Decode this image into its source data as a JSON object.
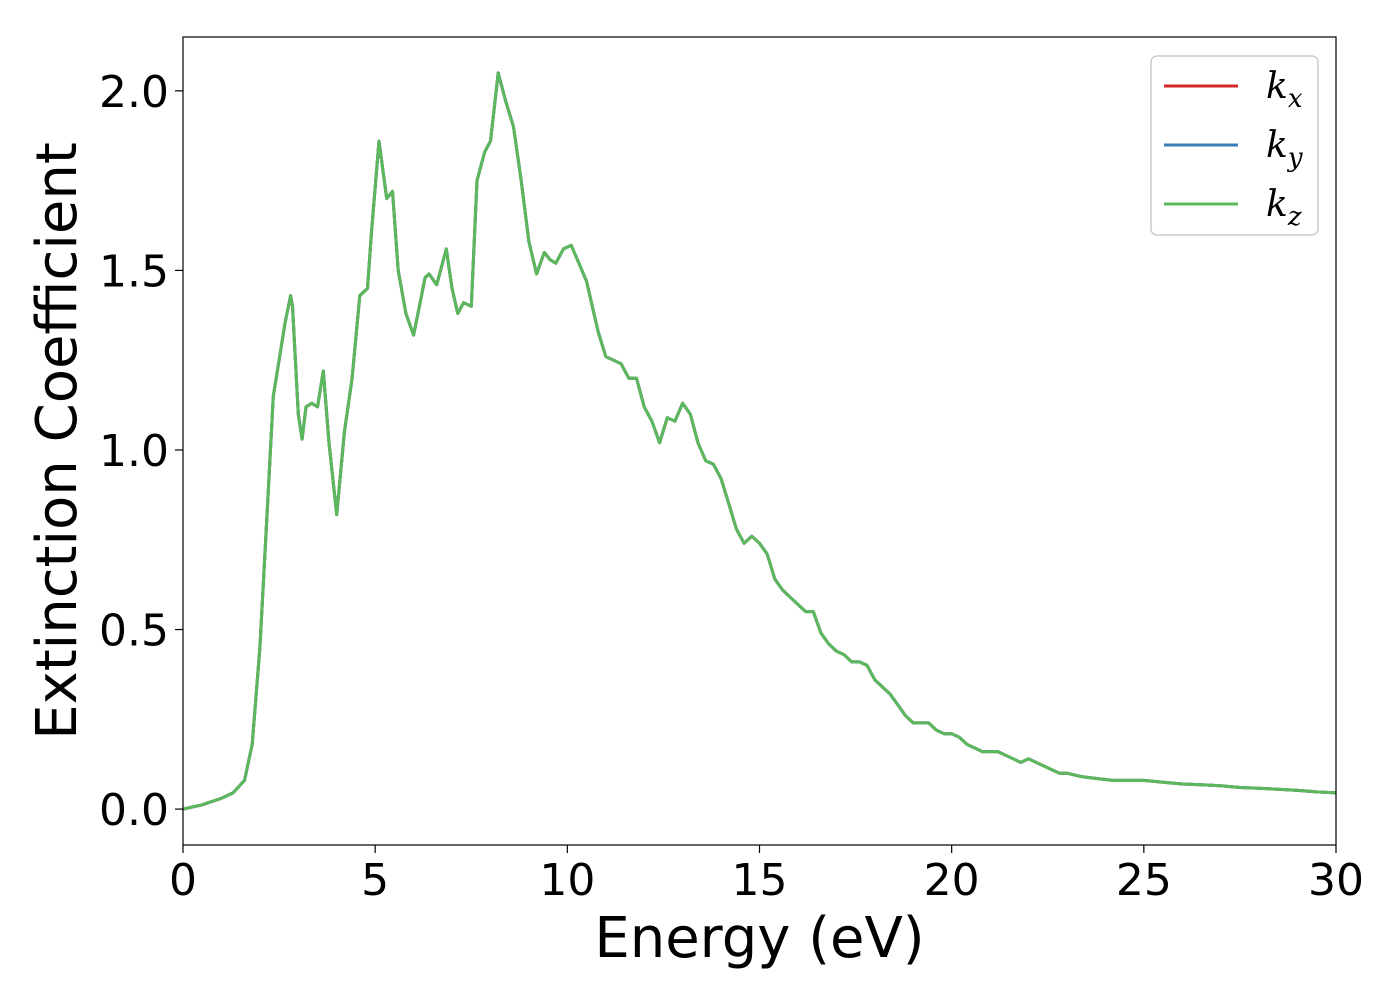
{
  "chart_data": {
    "type": "line",
    "title": "",
    "xlabel": "Energy (eV)",
    "ylabel": "Extinction Coefficient",
    "xlim": [
      0,
      30
    ],
    "ylim": [
      -0.1,
      2.15
    ],
    "xticks": [
      0,
      5,
      10,
      15,
      20,
      25,
      30
    ],
    "xtick_labels": [
      "0",
      "5",
      "10",
      "15",
      "20",
      "25",
      "30"
    ],
    "yticks": [
      0.0,
      0.5,
      1.0,
      1.5,
      2.0
    ],
    "ytick_labels": [
      "0.0",
      "0.5",
      "1.0",
      "1.5",
      "2.0"
    ],
    "grid": false,
    "legend_position": "top-right",
    "x": [
      0,
      0.5,
      1.0,
      1.3,
      1.6,
      1.8,
      2.0,
      2.2,
      2.35,
      2.5,
      2.65,
      2.8,
      2.85,
      3.0,
      3.1,
      3.2,
      3.35,
      3.5,
      3.65,
      3.8,
      4.0,
      4.2,
      4.4,
      4.6,
      4.8,
      4.9,
      5.1,
      5.3,
      5.45,
      5.6,
      5.8,
      6.0,
      6.15,
      6.3,
      6.4,
      6.6,
      6.85,
      7.0,
      7.15,
      7.3,
      7.5,
      7.65,
      7.85,
      8.0,
      8.2,
      8.4,
      8.6,
      8.8,
      9.0,
      9.2,
      9.4,
      9.55,
      9.7,
      9.9,
      10.1,
      10.3,
      10.5,
      10.8,
      11.0,
      11.2,
      11.4,
      11.6,
      11.8,
      12.0,
      12.2,
      12.4,
      12.6,
      12.8,
      13.0,
      13.2,
      13.4,
      13.6,
      13.8,
      14.0,
      14.2,
      14.4,
      14.6,
      14.8,
      15.0,
      15.2,
      15.4,
      15.6,
      15.8,
      16.0,
      16.2,
      16.4,
      16.6,
      16.8,
      17.0,
      17.2,
      17.4,
      17.6,
      17.8,
      18.0,
      18.2,
      18.4,
      18.6,
      18.8,
      19.0,
      19.2,
      19.4,
      19.6,
      19.8,
      20.0,
      20.2,
      20.4,
      20.6,
      20.8,
      21.0,
      21.2,
      21.4,
      21.6,
      21.8,
      22.0,
      22.2,
      22.4,
      22.6,
      22.8,
      23.0,
      23.4,
      23.8,
      24.2,
      24.6,
      25.0,
      25.5,
      26.0,
      26.5,
      27.0,
      27.5,
      28.0,
      28.5,
      29.0,
      29.5,
      30.0
    ],
    "series": [
      {
        "name": "k_x",
        "label_main": "k",
        "label_sub": "x",
        "color": "#d62728",
        "values": [
          0.0,
          0.012,
          0.03,
          0.045,
          0.08,
          0.18,
          0.45,
          0.85,
          1.15,
          1.25,
          1.35,
          1.43,
          1.4,
          1.1,
          1.03,
          1.12,
          1.13,
          1.12,
          1.22,
          1.02,
          0.82,
          1.05,
          1.2,
          1.43,
          1.45,
          1.6,
          1.86,
          1.7,
          1.72,
          1.5,
          1.38,
          1.32,
          1.4,
          1.48,
          1.49,
          1.46,
          1.56,
          1.45,
          1.38,
          1.41,
          1.4,
          1.75,
          1.83,
          1.86,
          2.05,
          1.97,
          1.9,
          1.75,
          1.58,
          1.49,
          1.55,
          1.53,
          1.52,
          1.56,
          1.57,
          1.52,
          1.47,
          1.33,
          1.26,
          1.25,
          1.24,
          1.2,
          1.2,
          1.12,
          1.08,
          1.02,
          1.09,
          1.08,
          1.13,
          1.1,
          1.02,
          0.97,
          0.96,
          0.92,
          0.85,
          0.78,
          0.74,
          0.76,
          0.74,
          0.71,
          0.64,
          0.61,
          0.59,
          0.57,
          0.55,
          0.55,
          0.49,
          0.46,
          0.44,
          0.43,
          0.41,
          0.41,
          0.4,
          0.36,
          0.34,
          0.32,
          0.29,
          0.26,
          0.24,
          0.24,
          0.24,
          0.22,
          0.21,
          0.21,
          0.2,
          0.18,
          0.17,
          0.16,
          0.16,
          0.16,
          0.15,
          0.14,
          0.13,
          0.14,
          0.13,
          0.12,
          0.11,
          0.1,
          0.1,
          0.09,
          0.085,
          0.08,
          0.08,
          0.08,
          0.075,
          0.07,
          0.068,
          0.065,
          0.06,
          0.058,
          0.055,
          0.052,
          0.048,
          0.045
        ]
      },
      {
        "name": "k_y",
        "label_main": "k",
        "label_sub": "y",
        "color": "#377eb8",
        "values": [
          0.0,
          0.012,
          0.03,
          0.045,
          0.08,
          0.18,
          0.45,
          0.85,
          1.15,
          1.25,
          1.35,
          1.43,
          1.4,
          1.1,
          1.03,
          1.12,
          1.13,
          1.12,
          1.22,
          1.02,
          0.82,
          1.05,
          1.2,
          1.43,
          1.45,
          1.6,
          1.86,
          1.7,
          1.72,
          1.5,
          1.38,
          1.32,
          1.4,
          1.48,
          1.49,
          1.46,
          1.56,
          1.45,
          1.38,
          1.41,
          1.4,
          1.75,
          1.83,
          1.86,
          2.05,
          1.97,
          1.9,
          1.75,
          1.58,
          1.49,
          1.55,
          1.53,
          1.52,
          1.56,
          1.57,
          1.52,
          1.47,
          1.33,
          1.26,
          1.25,
          1.24,
          1.2,
          1.2,
          1.12,
          1.08,
          1.02,
          1.09,
          1.08,
          1.13,
          1.1,
          1.02,
          0.97,
          0.96,
          0.92,
          0.85,
          0.78,
          0.74,
          0.76,
          0.74,
          0.71,
          0.64,
          0.61,
          0.59,
          0.57,
          0.55,
          0.55,
          0.49,
          0.46,
          0.44,
          0.43,
          0.41,
          0.41,
          0.4,
          0.36,
          0.34,
          0.32,
          0.29,
          0.26,
          0.24,
          0.24,
          0.24,
          0.22,
          0.21,
          0.21,
          0.2,
          0.18,
          0.17,
          0.16,
          0.16,
          0.16,
          0.15,
          0.14,
          0.13,
          0.14,
          0.13,
          0.12,
          0.11,
          0.1,
          0.1,
          0.09,
          0.085,
          0.08,
          0.08,
          0.08,
          0.075,
          0.07,
          0.068,
          0.065,
          0.06,
          0.058,
          0.055,
          0.052,
          0.048,
          0.045
        ]
      },
      {
        "name": "k_z",
        "label_main": "k",
        "label_sub": "z",
        "color": "#5cb85c",
        "values": [
          0.0,
          0.012,
          0.03,
          0.045,
          0.08,
          0.18,
          0.45,
          0.85,
          1.15,
          1.25,
          1.35,
          1.43,
          1.4,
          1.1,
          1.03,
          1.12,
          1.13,
          1.12,
          1.22,
          1.02,
          0.82,
          1.05,
          1.2,
          1.43,
          1.45,
          1.6,
          1.86,
          1.7,
          1.72,
          1.5,
          1.38,
          1.32,
          1.4,
          1.48,
          1.49,
          1.46,
          1.56,
          1.45,
          1.38,
          1.41,
          1.4,
          1.75,
          1.83,
          1.86,
          2.05,
          1.97,
          1.9,
          1.75,
          1.58,
          1.49,
          1.55,
          1.53,
          1.52,
          1.56,
          1.57,
          1.52,
          1.47,
          1.33,
          1.26,
          1.25,
          1.24,
          1.2,
          1.2,
          1.12,
          1.08,
          1.02,
          1.09,
          1.08,
          1.13,
          1.1,
          1.02,
          0.97,
          0.96,
          0.92,
          0.85,
          0.78,
          0.74,
          0.76,
          0.74,
          0.71,
          0.64,
          0.61,
          0.59,
          0.57,
          0.55,
          0.55,
          0.49,
          0.46,
          0.44,
          0.43,
          0.41,
          0.41,
          0.4,
          0.36,
          0.34,
          0.32,
          0.29,
          0.26,
          0.24,
          0.24,
          0.24,
          0.22,
          0.21,
          0.21,
          0.2,
          0.18,
          0.17,
          0.16,
          0.16,
          0.16,
          0.15,
          0.14,
          0.13,
          0.14,
          0.13,
          0.12,
          0.11,
          0.1,
          0.1,
          0.09,
          0.085,
          0.08,
          0.08,
          0.08,
          0.075,
          0.07,
          0.068,
          0.065,
          0.06,
          0.058,
          0.055,
          0.052,
          0.048,
          0.045
        ]
      }
    ]
  }
}
